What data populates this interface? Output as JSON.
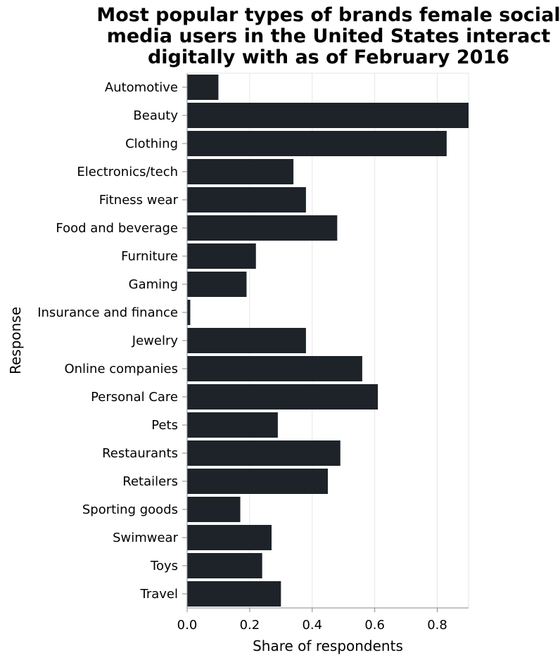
{
  "chart_data": {
    "type": "bar",
    "orientation": "horizontal",
    "title_lines": [
      "Most popular types of brands female social",
      "media users in the United States interact",
      "digitally with as of February 2016"
    ],
    "xlabel": "Share of respondents",
    "ylabel": "Response",
    "xlim": [
      0,
      0.9
    ],
    "xticks": [
      "0.0",
      "0.2",
      "0.4",
      "0.6",
      "0.8"
    ],
    "grid": true,
    "bar_color": "#1d2329",
    "categories": [
      "Automotive",
      "Beauty",
      "Clothing",
      "Electronics/tech",
      "Fitness wear",
      "Food and beverage",
      "Furniture",
      "Gaming",
      "Insurance and finance",
      "Jewelry",
      "Online companies",
      "Personal Care",
      "Pets",
      "Restaurants",
      "Retailers",
      "Sporting goods",
      "Swimwear",
      "Toys",
      "Travel"
    ],
    "values": [
      0.1,
      0.9,
      0.83,
      0.34,
      0.38,
      0.48,
      0.22,
      0.19,
      0.01,
      0.38,
      0.56,
      0.61,
      0.29,
      0.49,
      0.45,
      0.17,
      0.27,
      0.24,
      0.3
    ]
  }
}
